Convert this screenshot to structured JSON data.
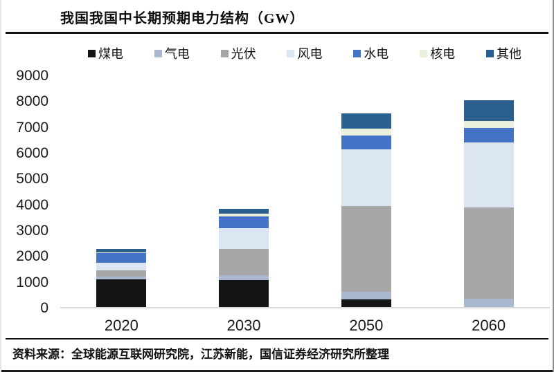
{
  "title": "我国我国中长期预期电力结构（GW）",
  "source": "资料来源：全球能源互联网研究院，江苏新能，国信证券经济研究所整理",
  "colors": {
    "axis_line": "#d9d9d9",
    "rule": "#111111",
    "background": "#ffffff"
  },
  "chart_data": {
    "type": "bar",
    "stacked": true,
    "title": "我国我国中长期预期电力结构（GW）",
    "unit": "GW",
    "categories": [
      "2020",
      "2030",
      "2050",
      "2060"
    ],
    "series": [
      {
        "name": "煤电",
        "color": "#141414",
        "values": [
          1080,
          1050,
          300,
          0
        ]
      },
      {
        "name": "气电",
        "color": "#aab9cf",
        "values": [
          100,
          185,
          300,
          320
        ]
      },
      {
        "name": "光伏",
        "color": "#a6a6a6",
        "values": [
          250,
          1025,
          3300,
          3550
        ]
      },
      {
        "name": "风电",
        "color": "#dce6f2",
        "values": [
          280,
          800,
          2200,
          2500
        ]
      },
      {
        "name": "水电",
        "color": "#4472c4",
        "values": [
          370,
          440,
          550,
          580
        ]
      },
      {
        "name": "核电",
        "color": "#e8efda",
        "values": [
          50,
          108,
          250,
          250
        ]
      },
      {
        "name": "其他",
        "color": "#2a5f8e",
        "values": [
          120,
          192,
          600,
          800
        ]
      }
    ],
    "totals": [
      2250,
      3800,
      7500,
      8000
    ],
    "ylim": [
      0,
      9000
    ],
    "yticks": [
      0,
      1000,
      2000,
      3000,
      4000,
      5000,
      6000,
      7000,
      8000,
      9000
    ],
    "grid": false,
    "legend_position": "top"
  }
}
